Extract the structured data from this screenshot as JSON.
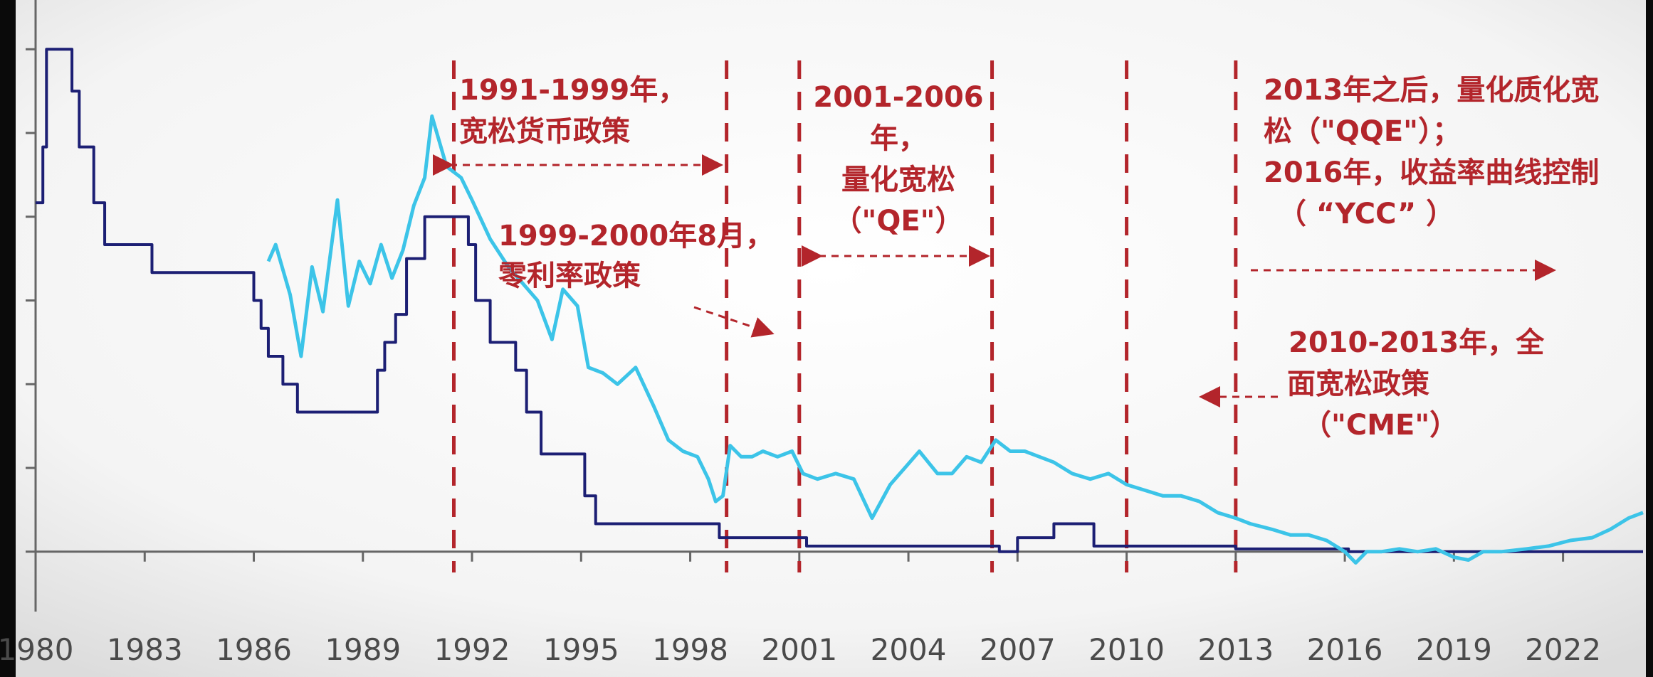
{
  "chart_data": {
    "type": "line",
    "title": "",
    "xlabel": "",
    "ylabel": "",
    "xlim": [
      1980,
      2024.2
    ],
    "ylim": [
      -0.5,
      9.5
    ],
    "x_ticks": [
      "1980",
      "1983",
      "1986",
      "1989",
      "1992",
      "1995",
      "1998",
      "2001",
      "2004",
      "2007",
      "2010",
      "2013",
      "2016",
      "2019",
      "2022"
    ],
    "colors": {
      "policy_rate": "#1c1f74",
      "bond_yield": "#3cc4e8",
      "annotation": "#b3252b",
      "axis": "#666666"
    },
    "series": [
      {
        "id": "policy_rate",
        "step": true,
        "x": [
          1980.0,
          1980.2,
          1980.3,
          1980.7,
          1981.0,
          1981.2,
          1981.3,
          1981.6,
          1981.9,
          1983.2,
          1986.0,
          1986.2,
          1986.4,
          1986.8,
          1987.2,
          1988.8,
          1989.4,
          1989.6,
          1989.9,
          1990.2,
          1990.7,
          1991.5,
          1991.9,
          1992.1,
          1992.5,
          1993.2,
          1993.5,
          1993.9,
          1995.1,
          1995.4,
          1995.6,
          1998.8,
          2001.0,
          2001.2,
          2006.5,
          2007.0,
          2008.0,
          2008.8,
          2009.1,
          2010.7,
          2013.0,
          2016.1,
          2024.2
        ],
        "y": [
          6.25,
          7.25,
          9.0,
          9.0,
          8.25,
          7.25,
          7.25,
          6.25,
          5.5,
          5.0,
          4.5,
          4.0,
          3.5,
          3.0,
          2.5,
          2.5,
          3.25,
          3.75,
          4.25,
          5.25,
          6.0,
          6.0,
          5.5,
          4.5,
          3.75,
          3.25,
          2.5,
          1.75,
          1.0,
          0.5,
          0.5,
          0.25,
          0.25,
          0.1,
          0.0,
          0.25,
          0.5,
          0.5,
          0.1,
          0.1,
          0.05,
          0.0,
          0.0
        ]
      },
      {
        "id": "bond_yield",
        "x": [
          1986.4,
          1986.6,
          1987.0,
          1987.3,
          1987.6,
          1987.9,
          1988.3,
          1988.6,
          1988.9,
          1989.2,
          1989.5,
          1989.8,
          1990.1,
          1990.4,
          1990.7,
          1990.9,
          1991.3,
          1991.7,
          1992.0,
          1992.5,
          1993.0,
          1993.4,
          1993.8,
          1994.2,
          1994.5,
          1994.9,
          1995.2,
          1995.6,
          1996.0,
          1996.5,
          1997.0,
          1997.4,
          1997.8,
          1998.2,
          1998.5,
          1998.7,
          1998.9,
          1999.1,
          1999.4,
          1999.7,
          2000.0,
          2000.4,
          2000.8,
          2001.1,
          2001.5,
          2002.0,
          2002.5,
          2003.0,
          2003.5,
          2003.9,
          2004.3,
          2004.8,
          2005.2,
          2005.6,
          2006.0,
          2006.4,
          2006.8,
          2007.2,
          2007.6,
          2008.0,
          2008.5,
          2009.0,
          2009.5,
          2010.0,
          2010.5,
          2011.0,
          2011.5,
          2012.0,
          2012.5,
          2013.0,
          2013.4,
          2014.0,
          2014.5,
          2015.0,
          2015.5,
          2016.0,
          2016.3,
          2016.6,
          2017.0,
          2017.5,
          2018.0,
          2018.5,
          2019.0,
          2019.4,
          2019.8,
          2020.3,
          2021.0,
          2021.6,
          2022.2,
          2022.8,
          2023.3,
          2023.8,
          2024.2
        ],
        "y": [
          5.2,
          5.5,
          4.6,
          3.5,
          5.1,
          4.3,
          6.3,
          4.4,
          5.2,
          4.8,
          5.5,
          4.9,
          5.4,
          6.2,
          6.7,
          7.8,
          6.9,
          6.7,
          6.3,
          5.6,
          5.1,
          4.8,
          4.5,
          3.8,
          4.7,
          4.4,
          3.3,
          3.2,
          3.0,
          3.3,
          2.6,
          2.0,
          1.8,
          1.7,
          1.3,
          0.9,
          1.0,
          1.9,
          1.7,
          1.7,
          1.8,
          1.7,
          1.8,
          1.4,
          1.3,
          1.4,
          1.3,
          0.6,
          1.2,
          1.5,
          1.8,
          1.4,
          1.4,
          1.7,
          1.6,
          2.0,
          1.8,
          1.8,
          1.7,
          1.6,
          1.4,
          1.3,
          1.4,
          1.2,
          1.1,
          1.0,
          1.0,
          0.9,
          0.7,
          0.6,
          0.5,
          0.4,
          0.3,
          0.3,
          0.2,
          0.0,
          -0.2,
          0.0,
          0.0,
          0.05,
          0.0,
          0.05,
          -0.1,
          -0.15,
          0.0,
          0.0,
          0.05,
          0.1,
          0.2,
          0.25,
          0.4,
          0.6,
          0.7
        ]
      }
    ],
    "vlines": [
      1991.5,
      1999.0,
      2001.0,
      2006.3,
      2010.0,
      2013.0
    ],
    "annotations": [
      {
        "id": "anno-1991",
        "lines": [
          "1991-1999年，",
          "宽松货币政策"
        ]
      },
      {
        "id": "anno-1999",
        "lines": [
          "1999-2000年8月，",
          "零利率政策"
        ]
      },
      {
        "id": "anno-2001",
        "lines": [
          "2001-2006",
          "年，",
          "量化宽松",
          "（\"QE\"）"
        ]
      },
      {
        "id": "anno-2013",
        "lines": [
          "2013年之后，量化质化宽",
          "松（\"QQE\"）；",
          "2016年，收益率曲线控制",
          "（ “YCC” ）"
        ]
      },
      {
        "id": "anno-2010",
        "lines": [
          "2010-2013年，全",
          "面宽松政策",
          "（\"CME\"）"
        ]
      }
    ]
  }
}
